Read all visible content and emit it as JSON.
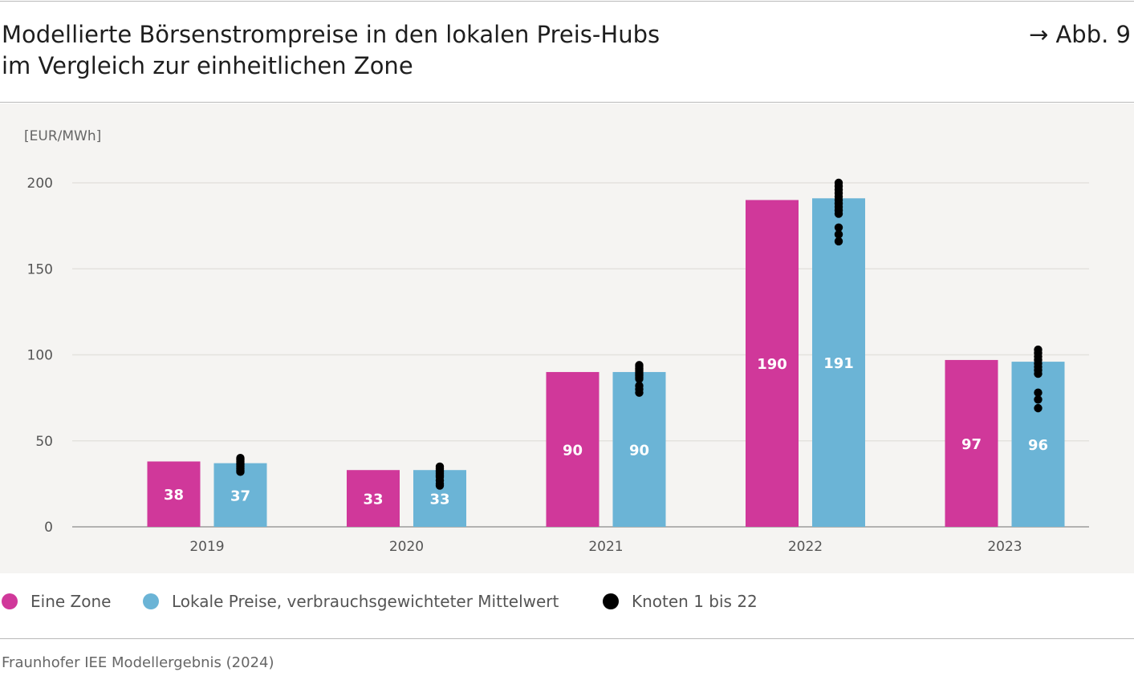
{
  "header": {
    "title_line1": "Modellierte Börsenstrompreise in den lokalen Preis-Hubs",
    "title_line2": "im Vergleich zur einheitlichen Zone",
    "figure_ref": "→ Abb. 9"
  },
  "colors": {
    "eine_zone": "#d0389a",
    "lokale_preise": "#6bb4d6",
    "knoten": "#000000",
    "panel_background": "#f5f4f2"
  },
  "chart_data": {
    "type": "bar",
    "unit_label": "[EUR/MWh]",
    "ylim": [
      0,
      200
    ],
    "yticks": [
      0,
      50,
      100,
      150,
      200
    ],
    "grid": true,
    "categories": [
      "2019",
      "2020",
      "2021",
      "2022",
      "2023"
    ],
    "series": [
      {
        "name": "Eine Zone",
        "values": [
          38,
          33,
          90,
          190,
          97
        ],
        "labels": [
          "38",
          "33",
          "90",
          "190",
          "97"
        ]
      },
      {
        "name": "Lokale Preise, verbrauchsgewichteter Mittelwert",
        "values": [
          37,
          33,
          90,
          191,
          96
        ],
        "labels": [
          "37",
          "33",
          "90",
          "191",
          "96"
        ]
      }
    ],
    "nodes": {
      "name": "Knoten 1 bis 22",
      "values": [
        [
          32,
          33,
          34,
          35,
          36,
          37,
          38,
          39,
          40
        ],
        [
          24,
          25,
          27,
          29,
          30,
          31,
          32,
          33,
          34,
          35
        ],
        [
          78,
          80,
          82,
          86,
          87,
          88,
          89,
          90,
          91,
          92,
          93,
          94
        ],
        [
          166,
          170,
          174,
          182,
          184,
          186,
          188,
          190,
          192,
          194,
          196,
          198,
          200
        ],
        [
          69,
          74,
          78,
          89,
          91,
          93,
          95,
          97,
          99,
          101,
          103
        ]
      ]
    },
    "legend_position": "bottom"
  },
  "legend": {
    "items": [
      {
        "label": "Eine Zone",
        "color": "#d0389a"
      },
      {
        "label": "Lokale Preise, verbrauchsgewichteter Mittelwert",
        "color": "#6bb4d6"
      },
      {
        "label": "Knoten 1 bis 22",
        "color": "#000000"
      }
    ]
  },
  "source": "Fraunhofer IEE Modellergebnis (2024)"
}
